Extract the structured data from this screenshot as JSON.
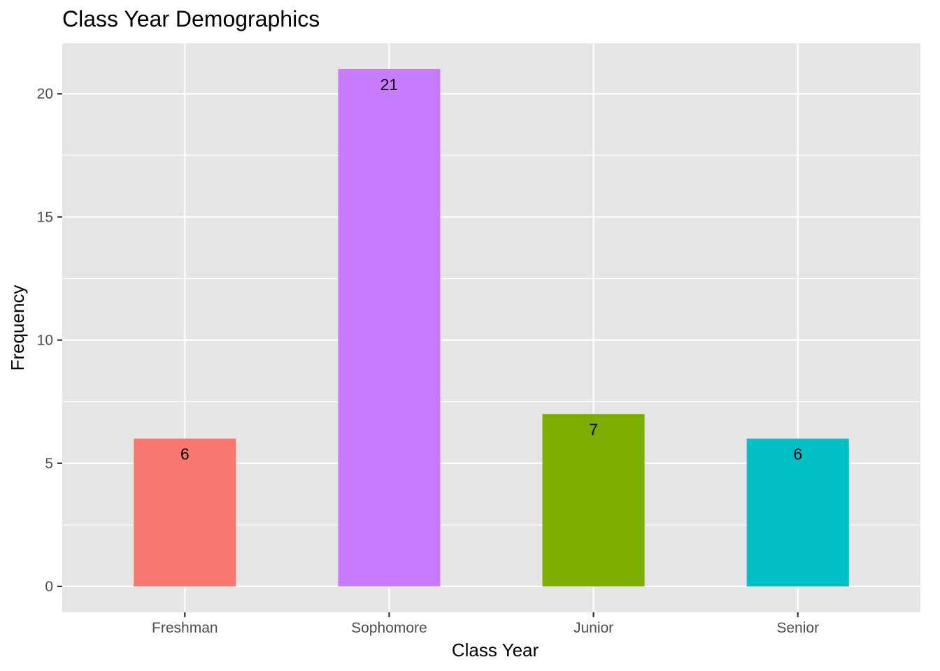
{
  "chart_data": {
    "type": "bar",
    "title": "Class Year Demographics",
    "xlabel": "Class Year",
    "ylabel": "Frequency",
    "categories": [
      "Freshman",
      "Sophomore",
      "Junior",
      "Senior"
    ],
    "values": [
      6,
      21,
      7,
      6
    ],
    "data_labels": [
      "6",
      "21",
      "7",
      "6"
    ],
    "colors": [
      "#F8766D",
      "#C77CFF",
      "#7CAE00",
      "#00BFC4"
    ],
    "ylim": [
      -1.05,
      22.05
    ],
    "yticks": [
      0,
      5,
      10,
      15,
      20
    ],
    "ytick_labels": [
      "0",
      "5",
      "10",
      "15",
      "20"
    ],
    "grid": true,
    "panel_background": "#E5E5E5",
    "grid_color": "#FFFFFF",
    "legend": "none"
  }
}
